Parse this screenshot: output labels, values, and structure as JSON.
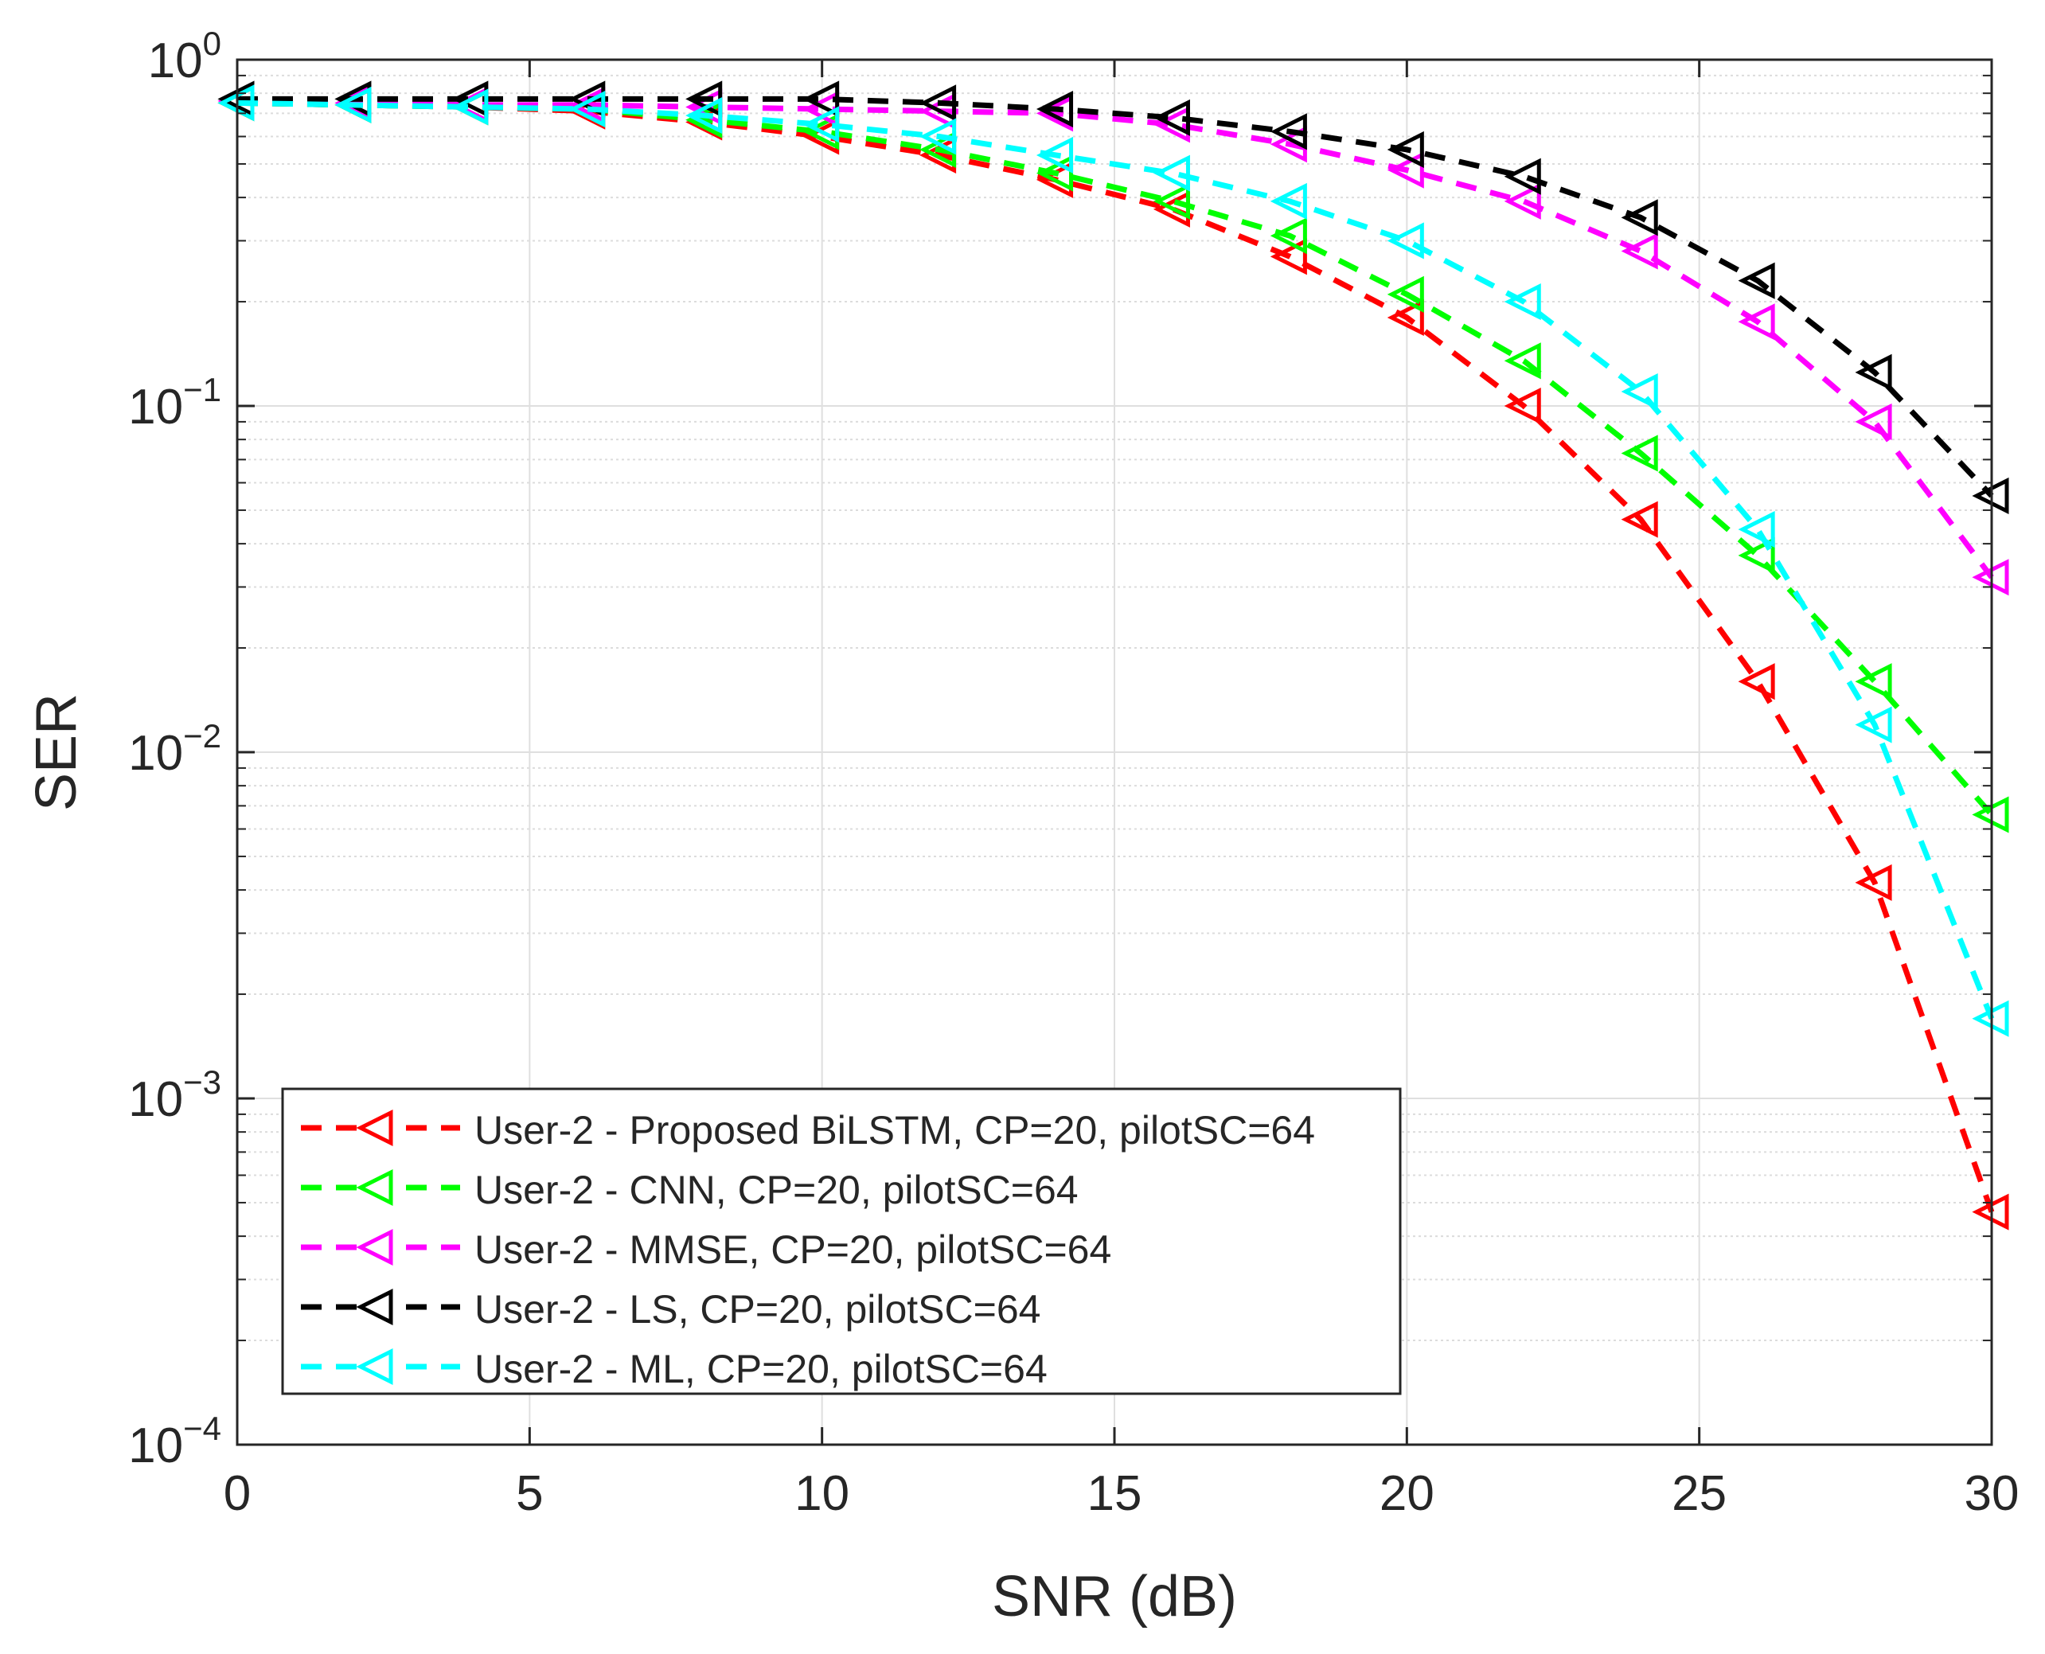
{
  "chart_data": {
    "type": "line",
    "title": "",
    "xlabel": "SNR (dB)",
    "ylabel": "SER",
    "xscale": "linear",
    "yscale": "log",
    "xlim": [
      0,
      30
    ],
    "ylim": [
      0.0001,
      1
    ],
    "grid": true,
    "x_ticks": [
      0,
      5,
      10,
      15,
      20,
      25,
      30
    ],
    "x_tick_labels": [
      "0",
      "5",
      "10",
      "15",
      "20",
      "25",
      "30"
    ],
    "y_tick_exponents": [
      -4,
      -3,
      -2,
      -1,
      0
    ],
    "y_tick_base": "10",
    "x": [
      0,
      2,
      4,
      6,
      8,
      10,
      12,
      14,
      16,
      18,
      20,
      22,
      24,
      26,
      28,
      30
    ],
    "legend_position": "lower-left",
    "series": [
      {
        "name": "User-2 - Proposed BiLSTM, CP=20, pilotSC=64",
        "color": "#ff0000",
        "marker": "triangle-left",
        "line_style": "dashed",
        "values": [
          0.75,
          0.74,
          0.73,
          0.71,
          0.66,
          0.6,
          0.53,
          0.45,
          0.37,
          0.27,
          0.18,
          0.1,
          0.047,
          0.016,
          0.0042,
          0.00047
        ]
      },
      {
        "name": "User-2 - CNN, CP=20, pilotSC=64",
        "color": "#00ff00",
        "marker": "triangle-left",
        "line_style": "dashed",
        "values": [
          0.75,
          0.74,
          0.73,
          0.72,
          0.67,
          0.62,
          0.55,
          0.47,
          0.39,
          0.31,
          0.21,
          0.135,
          0.073,
          0.037,
          0.016,
          0.0066
        ]
      },
      {
        "name": "User-2 - MMSE, CP=20, pilotSC=64",
        "color": "#ff00ff",
        "marker": "triangle-left",
        "line_style": "dashed",
        "values": [
          0.76,
          0.75,
          0.74,
          0.74,
          0.73,
          0.72,
          0.71,
          0.7,
          0.65,
          0.57,
          0.48,
          0.39,
          0.28,
          0.175,
          0.09,
          0.032
        ]
      },
      {
        "name": "User-2 - LS, CP=20, pilotSC=64",
        "color": "#000000",
        "marker": "triangle-left",
        "line_style": "dashed",
        "values": [
          0.77,
          0.77,
          0.77,
          0.77,
          0.77,
          0.77,
          0.75,
          0.72,
          0.68,
          0.62,
          0.55,
          0.46,
          0.35,
          0.23,
          0.125,
          0.055
        ]
      },
      {
        "name": "User-2 - ML, CP=20, pilotSC=64",
        "color": "#00ffff",
        "marker": "triangle-left",
        "line_style": "dashed",
        "values": [
          0.75,
          0.74,
          0.73,
          0.72,
          0.69,
          0.65,
          0.6,
          0.53,
          0.47,
          0.39,
          0.3,
          0.2,
          0.11,
          0.044,
          0.012,
          0.0017
        ]
      }
    ]
  }
}
